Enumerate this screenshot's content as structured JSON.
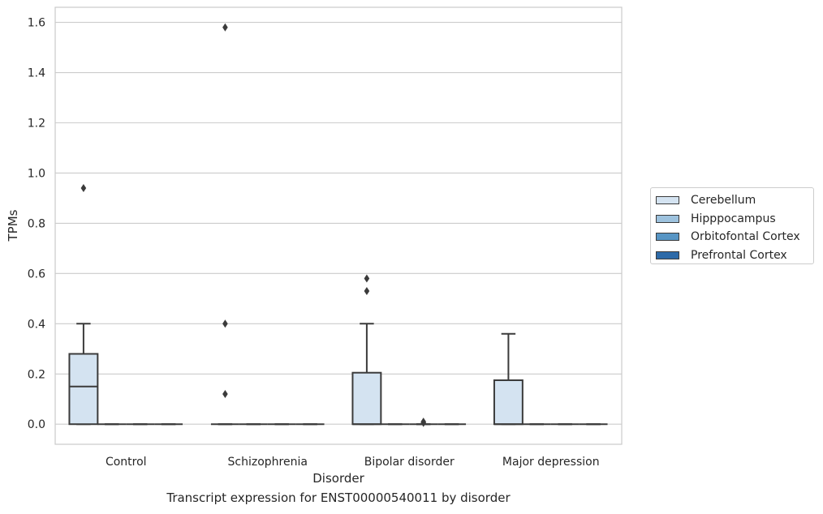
{
  "chart_data": {
    "type": "box",
    "xlabel": "Disorder",
    "ylabel": "TPMs",
    "ylim": [
      -0.08,
      1.66
    ],
    "yticks": [
      0.0,
      0.2,
      0.4,
      0.6,
      0.8,
      1.0,
      1.2,
      1.4,
      1.6
    ],
    "ytick_labels": [
      "0.0",
      "0.2",
      "0.4",
      "0.6",
      "0.8",
      "1.0",
      "1.2",
      "1.4",
      "1.6"
    ],
    "grid": true,
    "legend_position": "right",
    "categories": [
      "Control",
      "Schizophrenia",
      "Bipolar disorder",
      "Major depression"
    ],
    "series": [
      {
        "name": "Cerebellum",
        "color": "#d4e3f1",
        "boxes": [
          {
            "q1": 0.0,
            "median": 0.15,
            "q3": 0.28,
            "whisker_low": 0.0,
            "whisker_high": 0.4,
            "outliers": [
              0.94
            ]
          },
          {
            "q1": 0.0,
            "median": 0.0,
            "q3": 0.0,
            "whisker_low": 0.0,
            "whisker_high": 0.0,
            "outliers": [
              1.58,
              0.4,
              0.12
            ]
          },
          {
            "q1": 0.0,
            "median": 0.0,
            "q3": 0.205,
            "whisker_low": 0.0,
            "whisker_high": 0.4,
            "outliers": [
              0.58,
              0.53
            ]
          },
          {
            "q1": 0.0,
            "median": 0.0,
            "q3": 0.175,
            "whisker_low": 0.0,
            "whisker_high": 0.36,
            "outliers": []
          }
        ]
      },
      {
        "name": "Hipppocampus",
        "color": "#9dc2de",
        "boxes": [
          {
            "q1": 0.0,
            "median": 0.0,
            "q3": 0.0,
            "whisker_low": 0.0,
            "whisker_high": 0.0,
            "outliers": []
          },
          {
            "q1": 0.0,
            "median": 0.0,
            "q3": 0.0,
            "whisker_low": 0.0,
            "whisker_high": 0.0,
            "outliers": []
          },
          {
            "q1": 0.0,
            "median": 0.0,
            "q3": 0.0,
            "whisker_low": 0.0,
            "whisker_high": 0.0,
            "outliers": []
          },
          {
            "q1": 0.0,
            "median": 0.0,
            "q3": 0.0,
            "whisker_low": 0.0,
            "whisker_high": 0.0,
            "outliers": []
          }
        ]
      },
      {
        "name": "Orbitofontal Cortex",
        "color": "#5795c4",
        "boxes": [
          {
            "q1": 0.0,
            "median": 0.0,
            "q3": 0.0,
            "whisker_low": 0.0,
            "whisker_high": 0.0,
            "outliers": []
          },
          {
            "q1": 0.0,
            "median": 0.0,
            "q3": 0.0,
            "whisker_low": 0.0,
            "whisker_high": 0.0,
            "outliers": []
          },
          {
            "q1": 0.0,
            "median": 0.0,
            "q3": 0.0,
            "whisker_low": 0.0,
            "whisker_high": 0.0,
            "outliers": [
              0.01,
              0.005
            ]
          },
          {
            "q1": 0.0,
            "median": 0.0,
            "q3": 0.0,
            "whisker_low": 0.0,
            "whisker_high": 0.0,
            "outliers": []
          }
        ]
      },
      {
        "name": "Prefrontal Cortex",
        "color": "#2d6aa8",
        "boxes": [
          {
            "q1": 0.0,
            "median": 0.0,
            "q3": 0.0,
            "whisker_low": 0.0,
            "whisker_high": 0.0,
            "outliers": []
          },
          {
            "q1": 0.0,
            "median": 0.0,
            "q3": 0.0,
            "whisker_low": 0.0,
            "whisker_high": 0.0,
            "outliers": []
          },
          {
            "q1": 0.0,
            "median": 0.0,
            "q3": 0.0,
            "whisker_low": 0.0,
            "whisker_high": 0.0,
            "outliers": []
          },
          {
            "q1": 0.0,
            "median": 0.0,
            "q3": 0.0,
            "whisker_low": 0.0,
            "whisker_high": 0.0,
            "outliers": []
          }
        ]
      }
    ]
  },
  "caption": "Transcript expression for ENST00000540011 by disorder"
}
